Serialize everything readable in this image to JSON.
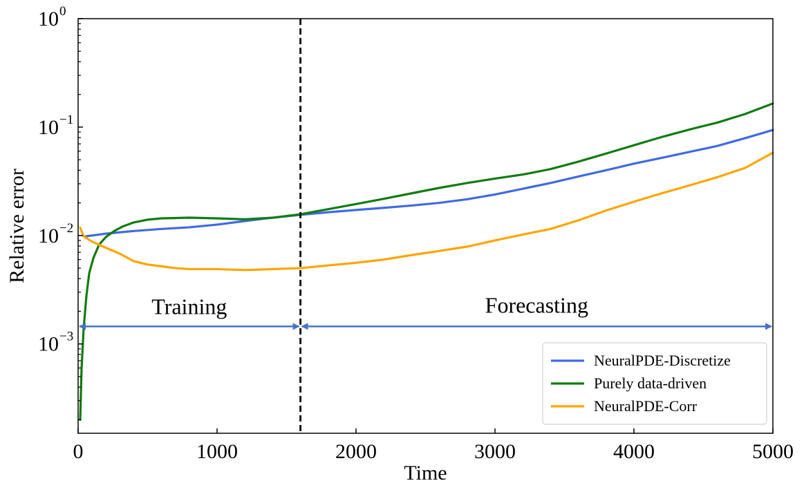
{
  "chart_data": {
    "type": "line",
    "xlabel": "Time",
    "ylabel": "Relative error",
    "xlim": [
      0,
      5000
    ],
    "ylim": [
      0.00015,
      1
    ],
    "yscale": "log",
    "grid": false,
    "legend_placement": "bottom-right",
    "x_ticks": [
      {
        "value": 0,
        "label": "0"
      },
      {
        "value": 1000,
        "label": "1000"
      },
      {
        "value": 2000,
        "label": "2000"
      },
      {
        "value": 3000,
        "label": "3000"
      },
      {
        "value": 4000,
        "label": "4000"
      },
      {
        "value": 5000,
        "label": "5000"
      }
    ],
    "y_ticks": [
      {
        "value": 0.001,
        "base": "10",
        "exp": "−3"
      },
      {
        "value": 0.01,
        "base": "10",
        "exp": "−2"
      },
      {
        "value": 0.1,
        "base": "10",
        "exp": "−1"
      },
      {
        "value": 1,
        "base": "10",
        "exp": "0"
      }
    ],
    "split_time": 1600,
    "annotations": {
      "training": "Training",
      "forecasting": "Forecasting",
      "arrow_y": 0.00145
    },
    "series": [
      {
        "name": "NeuralPDE-Discretize",
        "color": "#4169E1",
        "points": [
          [
            50,
            0.0098
          ],
          [
            200,
            0.0104
          ],
          [
            400,
            0.011
          ],
          [
            600,
            0.0115
          ],
          [
            800,
            0.0119
          ],
          [
            1000,
            0.0126
          ],
          [
            1200,
            0.0136
          ],
          [
            1400,
            0.0146
          ],
          [
            1600,
            0.0155
          ],
          [
            1800,
            0.0164
          ],
          [
            2000,
            0.0172
          ],
          [
            2200,
            0.018
          ],
          [
            2400,
            0.0189
          ],
          [
            2600,
            0.02
          ],
          [
            2800,
            0.0216
          ],
          [
            3000,
            0.0239
          ],
          [
            3200,
            0.027
          ],
          [
            3400,
            0.0305
          ],
          [
            3600,
            0.035
          ],
          [
            3800,
            0.04
          ],
          [
            4000,
            0.046
          ],
          [
            4200,
            0.052
          ],
          [
            4400,
            0.059
          ],
          [
            4600,
            0.067
          ],
          [
            4800,
            0.079
          ],
          [
            5000,
            0.094
          ]
        ]
      },
      {
        "name": "Purely data-driven",
        "color": "#107C10",
        "points": [
          [
            15,
            0.0002
          ],
          [
            25,
            0.0006
          ],
          [
            40,
            0.0014
          ],
          [
            60,
            0.0028
          ],
          [
            80,
            0.0045
          ],
          [
            110,
            0.0062
          ],
          [
            150,
            0.0082
          ],
          [
            200,
            0.0097
          ],
          [
            260,
            0.011
          ],
          [
            320,
            0.0121
          ],
          [
            400,
            0.0132
          ],
          [
            500,
            0.014
          ],
          [
            600,
            0.0144
          ],
          [
            800,
            0.0146
          ],
          [
            1000,
            0.0144
          ],
          [
            1200,
            0.0141
          ],
          [
            1400,
            0.0146
          ],
          [
            1600,
            0.0157
          ],
          [
            1800,
            0.0175
          ],
          [
            2000,
            0.0195
          ],
          [
            2200,
            0.0218
          ],
          [
            2400,
            0.0245
          ],
          [
            2600,
            0.0275
          ],
          [
            2800,
            0.0305
          ],
          [
            3000,
            0.0335
          ],
          [
            3200,
            0.0365
          ],
          [
            3400,
            0.041
          ],
          [
            3600,
            0.048
          ],
          [
            3800,
            0.057
          ],
          [
            4000,
            0.068
          ],
          [
            4200,
            0.081
          ],
          [
            4400,
            0.095
          ],
          [
            4600,
            0.11
          ],
          [
            4800,
            0.132
          ],
          [
            5000,
            0.165
          ]
        ]
      },
      {
        "name": "NeuralPDE-Corr",
        "color": "#FFA500",
        "points": [
          [
            15,
            0.0118
          ],
          [
            40,
            0.0098
          ],
          [
            100,
            0.0088
          ],
          [
            200,
            0.0077
          ],
          [
            300,
            0.0068
          ],
          [
            400,
            0.0058
          ],
          [
            500,
            0.0054
          ],
          [
            600,
            0.0052
          ],
          [
            700,
            0.005
          ],
          [
            800,
            0.0049
          ],
          [
            1000,
            0.0049
          ],
          [
            1200,
            0.0048
          ],
          [
            1400,
            0.0049
          ],
          [
            1600,
            0.005
          ],
          [
            1800,
            0.0053
          ],
          [
            2000,
            0.0056
          ],
          [
            2200,
            0.006
          ],
          [
            2400,
            0.0066
          ],
          [
            2600,
            0.0072
          ],
          [
            2800,
            0.0079
          ],
          [
            3000,
            0.009
          ],
          [
            3200,
            0.0102
          ],
          [
            3400,
            0.0115
          ],
          [
            3600,
            0.0138
          ],
          [
            3800,
            0.017
          ],
          [
            4000,
            0.0205
          ],
          [
            4200,
            0.0245
          ],
          [
            4400,
            0.029
          ],
          [
            4600,
            0.0345
          ],
          [
            4800,
            0.042
          ],
          [
            5000,
            0.058
          ]
        ]
      }
    ]
  }
}
